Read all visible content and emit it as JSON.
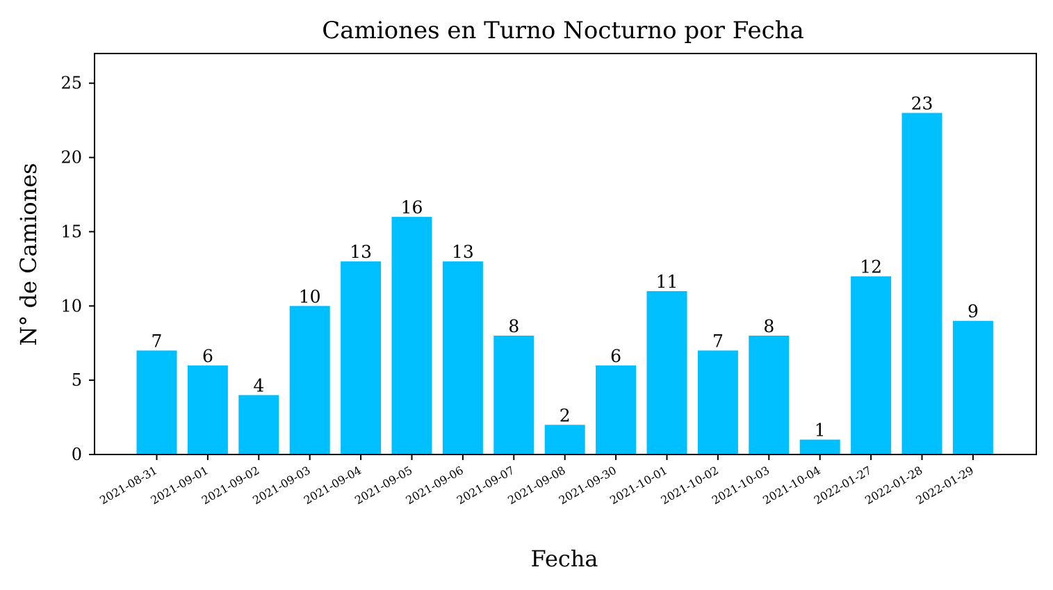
{
  "chart_data": {
    "type": "bar",
    "title": "Camiones en Turno Nocturno por Fecha",
    "xlabel": "Fecha",
    "ylabel": "N° de Camiones",
    "categories": [
      "2021-08-31",
      "2021-09-01",
      "2021-09-02",
      "2021-09-03",
      "2021-09-04",
      "2021-09-05",
      "2021-09-06",
      "2021-09-07",
      "2021-09-08",
      "2021-09-30",
      "2021-10-01",
      "2021-10-02",
      "2021-10-03",
      "2021-10-04",
      "2022-01-27",
      "2022-01-28",
      "2022-01-29"
    ],
    "values": [
      7,
      6,
      4,
      10,
      13,
      16,
      13,
      8,
      2,
      6,
      11,
      7,
      8,
      1,
      12,
      23,
      9
    ],
    "ylim": [
      0,
      27
    ],
    "yticks": [
      0,
      5,
      10,
      15,
      20,
      25
    ],
    "bar_color": "#00bfff",
    "grid": false,
    "legend": "none"
  }
}
